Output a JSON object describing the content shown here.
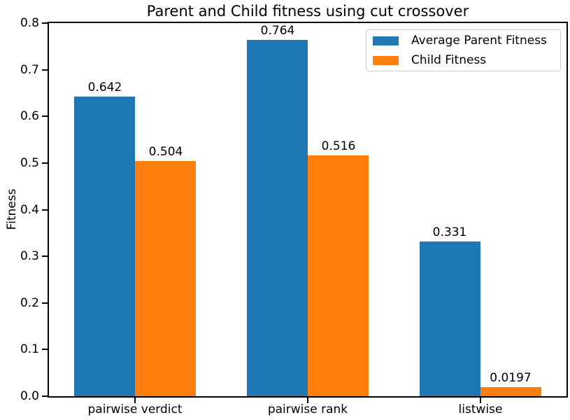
{
  "chart_data": {
    "type": "bar",
    "title": "Parent and Child fitness using cut crossover",
    "xlabel": "",
    "ylabel": "Fitness",
    "categories": [
      "pairwise verdict",
      "pairwise rank",
      "listwise"
    ],
    "series": [
      {
        "name": "Average Parent Fitness",
        "color": "#1f77b4",
        "values": [
          0.642,
          0.764,
          0.331
        ],
        "bar_labels": [
          "0.642",
          "0.764",
          "0.331"
        ]
      },
      {
        "name": "Child Fitness",
        "color": "#ff7f0e",
        "values": [
          0.504,
          0.516,
          0.0197
        ],
        "bar_labels": [
          "0.504",
          "0.516",
          "0.0197"
        ]
      }
    ],
    "ylim": [
      0,
      0.8
    ],
    "ytick_labels": [
      "0.0",
      "0.1",
      "0.2",
      "0.3",
      "0.4",
      "0.5",
      "0.6",
      "0.7",
      "0.8"
    ],
    "grid": false,
    "legend": {
      "position": "upper right",
      "entries": [
        "Average Parent Fitness",
        "Child Fitness"
      ]
    }
  }
}
